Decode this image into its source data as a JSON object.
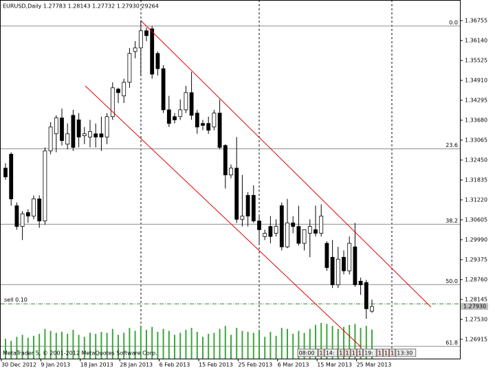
{
  "chart_data": {
    "type": "candlestick",
    "title": "EURUSD,Daily  1.27783 1.28143 1.27732 1.27930  29264",
    "categories": [
      "30 Dec 2012",
      null,
      null,
      null,
      null,
      null,
      null,
      "9 Jan 2013",
      null,
      null,
      null,
      null,
      null,
      null,
      "18 Jan 2013",
      null,
      null,
      null,
      null,
      null,
      null,
      "28 Jan 2013",
      null,
      null,
      null,
      null,
      null,
      null,
      "6 Feb 2013",
      null,
      null,
      null,
      null,
      null,
      null,
      "15 Feb 2013",
      null,
      null,
      null,
      null,
      null,
      null,
      "25 Feb 2013",
      null,
      null,
      null,
      null,
      null,
      null,
      "6 Mar 2013",
      null,
      null,
      null,
      null,
      null,
      null,
      "15 Mar 2013",
      null,
      null,
      null,
      null,
      null,
      null,
      "25 Mar 2013",
      null,
      null
    ],
    "open": [
      1.322,
      1.3263,
      1.3104,
      1.304,
      1.3083,
      1.3072,
      1.3125,
      1.3057,
      1.3273,
      1.3326,
      1.3375,
      1.3294,
      1.3383,
      1.3369,
      1.332,
      1.3316,
      1.3326,
      1.3326,
      1.3316,
      1.3379,
      1.3464,
      1.3443,
      1.3485,
      1.358,
      1.3591,
      1.3644,
      1.365,
      1.3574,
      1.3527,
      1.34,
      1.3379,
      1.3379,
      1.34,
      1.3453,
      1.339,
      1.3358,
      1.3358,
      1.3347,
      1.339,
      1.329,
      1.3199,
      1.322,
      1.3062,
      1.3136,
      1.3136,
      1.3057,
      1.3009,
      1.304,
      1.3019,
      1.3104,
      1.2977,
      1.3051,
      1.304,
      1.2988,
      1.3019,
      1.303,
      1.3019,
      1.2988,
      1.2945,
      1.286,
      1.2945,
      1.2903,
      1.2977,
      1.2871,
      1.2867,
      1.27783
    ],
    "high": [
      1.3235,
      1.3269,
      1.3114,
      1.3087,
      1.3093,
      1.3136,
      1.3136,
      1.3284,
      1.3362,
      1.3383,
      1.3404,
      1.3358,
      1.34,
      1.339,
      1.3347,
      1.3369,
      1.3358,
      1.3379,
      1.339,
      1.3485,
      1.3468,
      1.3496,
      1.3591,
      1.3612,
      1.3676,
      1.3654,
      1.3659,
      1.358,
      1.3538,
      1.3443,
      1.339,
      1.3432,
      1.3474,
      1.3517,
      1.34,
      1.3369,
      1.3379,
      1.34,
      1.3432,
      1.3294,
      1.3231,
      1.3316,
      1.3199,
      1.3146,
      1.3167,
      1.3072,
      1.303,
      1.3072,
      1.3062,
      1.3114,
      1.3125,
      1.3072,
      1.3104,
      1.303,
      1.3062,
      1.3104,
      1.3108,
      1.2994,
      1.2998,
      1.2977,
      1.2966,
      1.3009,
      1.3051,
      1.2882,
      1.2875,
      1.28143
    ],
    "low": [
      1.3184,
      1.3104,
      1.303,
      1.2998,
      1.3051,
      1.3062,
      1.3036,
      1.3045,
      1.3263,
      1.3269,
      1.329,
      1.3278,
      1.3273,
      1.3284,
      1.3294,
      1.3284,
      1.3284,
      1.3273,
      1.3294,
      1.3369,
      1.3421,
      1.3421,
      1.3468,
      1.3559,
      1.3506,
      1.3612,
      1.3496,
      1.3506,
      1.339,
      1.3347,
      1.3358,
      1.3369,
      1.339,
      1.3369,
      1.3326,
      1.3337,
      1.3326,
      1.3337,
      1.3278,
      1.3157,
      1.3189,
      1.3051,
      1.304,
      1.304,
      1.3051,
      1.2988,
      1.2998,
      1.2988,
      1.3009,
      1.2966,
      1.2973,
      1.3019,
      1.2981,
      1.2966,
      1.2945,
      1.3009,
      1.3009,
      1.2903,
      1.285,
      1.285,
      1.2892,
      1.2892,
      1.2854,
      1.2829,
      1.2755,
      1.27732
    ],
    "close": [
      1.3193,
      1.3125,
      1.304,
      1.3079,
      1.3072,
      1.3125,
      1.3057,
      1.3273,
      1.3347,
      1.3375,
      1.3305,
      1.3326,
      1.3284,
      1.3316,
      1.3326,
      1.3333,
      1.3316,
      1.3316,
      1.3379,
      1.3468,
      1.3453,
      1.3485,
      1.3574,
      1.3591,
      1.3644,
      1.3629,
      1.351,
      1.3527,
      1.34,
      1.3358,
      1.3369,
      1.34,
      1.3453,
      1.3383,
      1.3347,
      1.3352,
      1.3337,
      1.339,
      1.3284,
      1.3199,
      1.322,
      1.3062,
      1.3072,
      1.3072,
      1.3057,
      1.303,
      1.3019,
      1.3009,
      1.304,
      1.2977,
      1.3051,
      1.304,
      1.2988,
      1.303,
      1.304,
      1.3019,
      1.3072,
      1.2913,
      1.286,
      1.2939,
      1.2903,
      1.2988,
      1.286,
      1.286,
      1.2786,
      1.2793
    ],
    "volume": [
      20000,
      18000,
      22000,
      24000,
      21000,
      23000,
      25000,
      30000,
      28000,
      26000,
      27000,
      25000,
      29000,
      24000,
      22000,
      26000,
      25000,
      27000,
      26000,
      30000,
      24000,
      26000,
      31000,
      28000,
      33000,
      29000,
      32000,
      27000,
      30000,
      28000,
      24000,
      26000,
      29000,
      31000,
      27000,
      22000,
      25000,
      26000,
      30000,
      33000,
      24000,
      31000,
      28000,
      27000,
      26000,
      29000,
      22000,
      27000,
      23000,
      31000,
      30000,
      25000,
      28000,
      26000,
      30000,
      34000,
      36000,
      35000,
      33000,
      30000,
      32000,
      34000,
      35000,
      31000,
      33000,
      29264
    ],
    "bull_color": "#ffffff",
    "bear_color": "#000000",
    "volume_color": "#3aa63a",
    "ylim": [
      1.2632,
      1.3739
    ],
    "yticks": [
      1.36755,
      {
        "value": 1.3614,
        "label": "1.36140"
      },
      1.35525,
      {
        "value": 1.3491,
        "label": "1.34910"
      },
      1.34295,
      {
        "value": 1.3368,
        "label": "1.33680"
      },
      1.33065,
      {
        "value": 1.3245,
        "label": "1.32450"
      },
      1.31835,
      {
        "value": 1.3122,
        "label": "1.31220"
      },
      1.30605,
      {
        "value": 1.2999,
        "label": "1.29990"
      },
      1.29375,
      {
        "value": 1.2876,
        "label": "1.28760"
      },
      1.28145,
      {
        "value": 1.2753,
        "label": "1.27530"
      },
      1.26915
    ],
    "bid": {
      "value": 1.2793,
      "label": "1.27930"
    },
    "sell_line": {
      "label": "sell 0.10",
      "price": 1.2801,
      "color": "#2a8a2a"
    },
    "fibo": [
      {
        "label": "0.0",
        "price": 1.36586
      },
      {
        "label": "23.6",
        "price": 1.32796
      },
      {
        "label": "38.2",
        "price": 1.30468
      },
      {
        "label": "50.0",
        "price": 1.28605
      },
      {
        "label": "61.8",
        "price": 1.26699
      }
    ],
    "copyright": "MetaTrader 5, © 2001-2012 MetaQuotes Software Corp.",
    "status_boxes": [
      "08:00",
      "1",
      "14:",
      "1",
      "1",
      "1",
      "1",
      "19:",
      "1",
      "1",
      "1",
      "13:30"
    ]
  }
}
